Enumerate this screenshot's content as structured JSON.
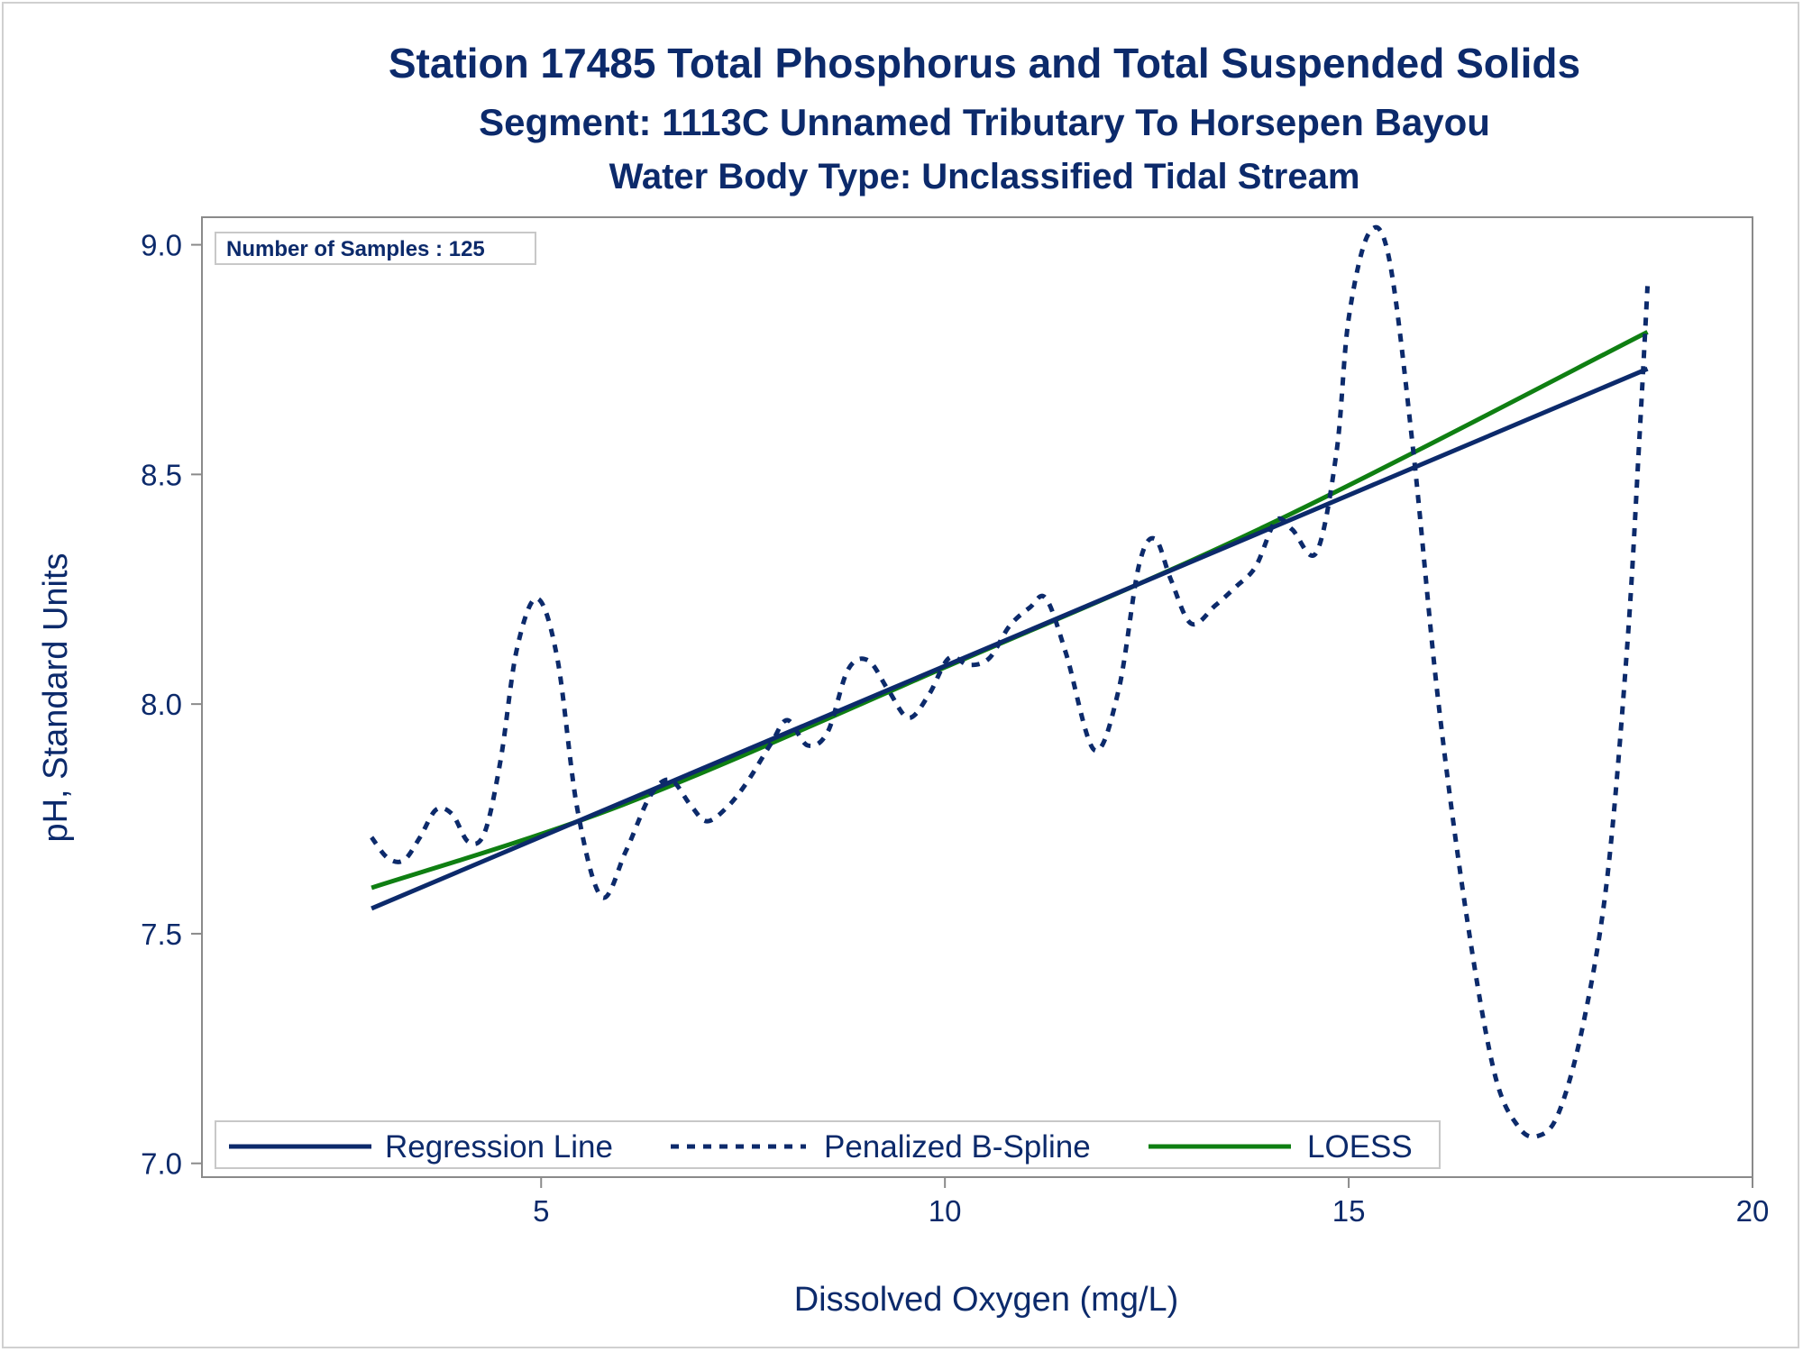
{
  "chart_data": {
    "type": "line",
    "title": "Station 17485  Total Phosphorus and Total Suspended Solids",
    "subtitle": "Segment: 1113C  Unnamed Tributary To Horsepen Bayou",
    "subtitle2": "Water Body Type: Unclassified Tidal Stream",
    "xlabel": "Dissolved Oxygen (mg/L)",
    "ylabel": "pH, Standard Units",
    "xlim": [
      0.8,
      20.0
    ],
    "ylim": [
      6.97,
      9.06
    ],
    "xticks": [
      5,
      10,
      15,
      20
    ],
    "xtick_labels": [
      "5",
      "10",
      "15",
      "20"
    ],
    "yticks": [
      7.0,
      7.5,
      8.0,
      8.5,
      9.0
    ],
    "ytick_labels": [
      "7.0",
      "7.5",
      "8.0",
      "8.5",
      "9.0"
    ],
    "grid": false,
    "legend_position": "bottom-left",
    "inset_label": "Number of Samples : 125",
    "series": [
      {
        "name": "Regression Line",
        "style": "solid",
        "color": "#0c2a6b",
        "points": [
          [
            2.9,
            7.555
          ],
          [
            18.7,
            8.73
          ]
        ]
      },
      {
        "name": "Penalized B-Spline",
        "style": "dashed",
        "color": "#0c2a6b",
        "points": [
          [
            2.9,
            7.71
          ],
          [
            3.1,
            7.665
          ],
          [
            3.3,
            7.66
          ],
          [
            3.5,
            7.71
          ],
          [
            3.7,
            7.77
          ],
          [
            3.9,
            7.76
          ],
          [
            4.1,
            7.7
          ],
          [
            4.3,
            7.72
          ],
          [
            4.5,
            7.88
          ],
          [
            4.7,
            8.12
          ],
          [
            4.95,
            8.23
          ],
          [
            5.2,
            8.1
          ],
          [
            5.45,
            7.77
          ],
          [
            5.75,
            7.58
          ],
          [
            6.05,
            7.68
          ],
          [
            6.35,
            7.8
          ],
          [
            6.6,
            7.835
          ],
          [
            6.85,
            7.78
          ],
          [
            7.05,
            7.745
          ],
          [
            7.3,
            7.775
          ],
          [
            7.55,
            7.83
          ],
          [
            7.85,
            7.915
          ],
          [
            8.05,
            7.965
          ],
          [
            8.3,
            7.91
          ],
          [
            8.55,
            7.94
          ],
          [
            8.8,
            8.075
          ],
          [
            9.05,
            8.095
          ],
          [
            9.3,
            8.03
          ],
          [
            9.55,
            7.97
          ],
          [
            9.8,
            8.02
          ],
          [
            10.05,
            8.1
          ],
          [
            10.3,
            8.085
          ],
          [
            10.55,
            8.1
          ],
          [
            10.8,
            8.17
          ],
          [
            11.05,
            8.21
          ],
          [
            11.25,
            8.23
          ],
          [
            11.5,
            8.11
          ],
          [
            11.85,
            7.9
          ],
          [
            12.15,
            8.03
          ],
          [
            12.4,
            8.3
          ],
          [
            12.6,
            8.36
          ],
          [
            12.8,
            8.27
          ],
          [
            13.05,
            8.175
          ],
          [
            13.35,
            8.215
          ],
          [
            13.6,
            8.255
          ],
          [
            13.85,
            8.3
          ],
          [
            14.1,
            8.4
          ],
          [
            14.3,
            8.38
          ],
          [
            14.6,
            8.33
          ],
          [
            14.85,
            8.55
          ],
          [
            15.0,
            8.84
          ],
          [
            15.25,
            9.025
          ],
          [
            15.5,
            8.97
          ],
          [
            15.8,
            8.55
          ],
          [
            16.1,
            8.02
          ],
          [
            16.45,
            7.55
          ],
          [
            16.8,
            7.2
          ],
          [
            17.1,
            7.08
          ],
          [
            17.35,
            7.06
          ],
          [
            17.6,
            7.11
          ],
          [
            17.9,
            7.3
          ],
          [
            18.2,
            7.62
          ],
          [
            18.45,
            8.13
          ],
          [
            18.6,
            8.58
          ],
          [
            18.7,
            8.91
          ]
        ]
      },
      {
        "name": "LOESS",
        "style": "solid",
        "color": "#0f7f12",
        "points": [
          [
            2.9,
            7.6
          ],
          [
            6.0,
            7.78
          ],
          [
            10.0,
            8.08
          ],
          [
            14.0,
            8.39
          ],
          [
            18.7,
            8.81
          ]
        ]
      }
    ]
  }
}
